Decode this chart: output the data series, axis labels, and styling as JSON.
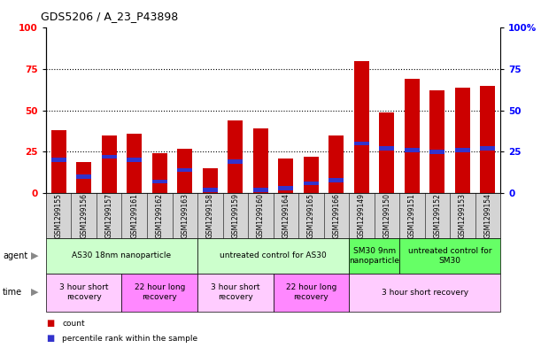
{
  "title": "GDS5206 / A_23_P43898",
  "samples": [
    "GSM1299155",
    "GSM1299156",
    "GSM1299157",
    "GSM1299161",
    "GSM1299162",
    "GSM1299163",
    "GSM1299158",
    "GSM1299159",
    "GSM1299160",
    "GSM1299164",
    "GSM1299165",
    "GSM1299166",
    "GSM1299149",
    "GSM1299150",
    "GSM1299151",
    "GSM1299152",
    "GSM1299153",
    "GSM1299154"
  ],
  "counts": [
    38,
    19,
    35,
    36,
    24,
    27,
    15,
    44,
    39,
    21,
    22,
    35,
    80,
    49,
    69,
    62,
    64,
    65
  ],
  "percentiles": [
    20,
    10,
    22,
    20,
    7,
    14,
    2,
    19,
    2,
    3,
    6,
    8,
    30,
    27,
    26,
    25,
    26,
    27
  ],
  "ylim": [
    0,
    100
  ],
  "yticks": [
    0,
    25,
    50,
    75,
    100
  ],
  "bar_color": "#cc0000",
  "percentile_color": "#3333cc",
  "agent_groups": [
    {
      "label": "AS30 18nm nanoparticle",
      "start": 0,
      "end": 6,
      "color": "#ccffcc"
    },
    {
      "label": "untreated control for AS30",
      "start": 6,
      "end": 12,
      "color": "#ccffcc"
    },
    {
      "label": "SM30 9nm\nnanoparticle",
      "start": 12,
      "end": 14,
      "color": "#66ff66"
    },
    {
      "label": "untreated control for\nSM30",
      "start": 14,
      "end": 18,
      "color": "#66ff66"
    }
  ],
  "time_groups": [
    {
      "label": "3 hour short\nrecovery",
      "start": 0,
      "end": 3,
      "color": "#ffccff"
    },
    {
      "label": "22 hour long\nrecovery",
      "start": 3,
      "end": 6,
      "color": "#ff88ff"
    },
    {
      "label": "3 hour short\nrecovery",
      "start": 6,
      "end": 9,
      "color": "#ffccff"
    },
    {
      "label": "22 hour long\nrecovery",
      "start": 9,
      "end": 12,
      "color": "#ff88ff"
    },
    {
      "label": "3 hour short recovery",
      "start": 12,
      "end": 18,
      "color": "#ffccff"
    }
  ],
  "legend_count_color": "#cc0000",
  "legend_percentile_color": "#3333cc",
  "fig_bg_color": "#ffffff",
  "plot_bg_color": "#ffffff",
  "tick_bg_color": "#d4d4d4"
}
